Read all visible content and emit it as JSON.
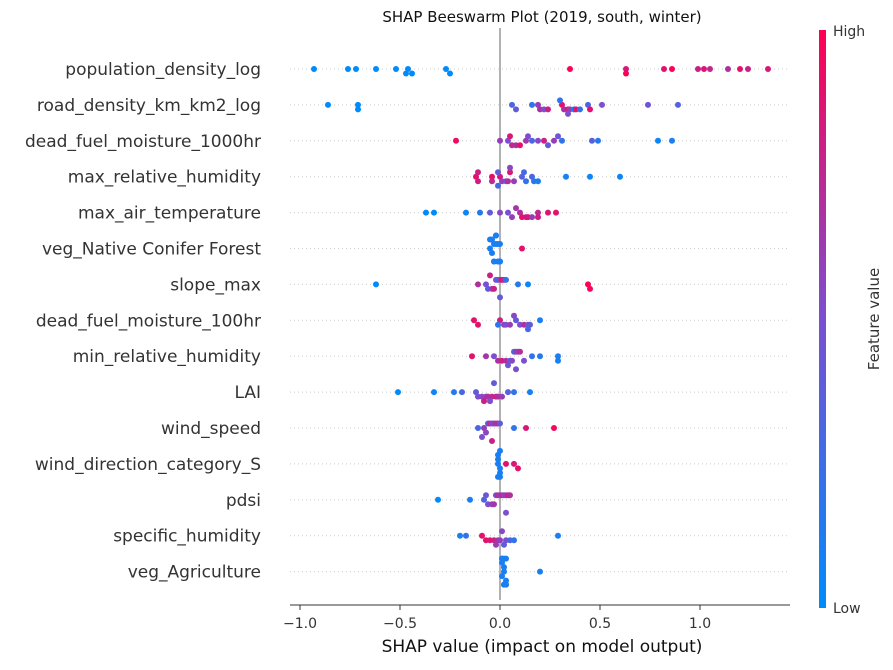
{
  "chart_data": {
    "type": "scatter",
    "title": "SHAP Beeswarm Plot (2019, south, winter)",
    "xlabel": "SHAP value (impact on model output)",
    "xlim": [
      -1.05,
      1.45
    ],
    "xticks": [
      -1.0,
      -0.5,
      0.0,
      0.5,
      1.0
    ],
    "xtick_labels": [
      "−1.0",
      "−0.5",
      "0.0",
      "0.5",
      "1.0"
    ],
    "colorbar": {
      "label": "Feature value",
      "high_label": "High",
      "low_label": "Low",
      "low_color": "#008bfb",
      "mid_color": "#7b4fd0",
      "high_color": "#ff0052"
    },
    "zero_line_color": "#999999",
    "features": [
      {
        "name": "population_density_log",
        "points": [
          [
            -0.93,
            0.0
          ],
          [
            -0.76,
            0.0
          ],
          [
            -0.72,
            0.0
          ],
          [
            -0.62,
            0.0
          ],
          [
            -0.52,
            0.0
          ],
          [
            -0.46,
            0.0
          ],
          [
            -0.44,
            0.0
          ],
          [
            -0.27,
            0.0
          ],
          [
            -0.25,
            0.0
          ],
          [
            0.35,
            1.0
          ],
          [
            0.63,
            0.85
          ],
          [
            0.82,
            0.9
          ],
          [
            0.86,
            1.0
          ],
          [
            0.99,
            0.8
          ],
          [
            1.02,
            0.85
          ],
          [
            1.05,
            0.75
          ],
          [
            1.14,
            0.7
          ],
          [
            1.2,
            0.9
          ],
          [
            1.24,
            0.8
          ],
          [
            1.34,
            0.85
          ],
          [
            -0.47,
            0.0
          ],
          [
            0.63,
            1.0
          ]
        ]
      },
      {
        "name": "road_density_km_km2_log",
        "points": [
          [
            -0.86,
            0.0
          ],
          [
            -0.71,
            0.0
          ],
          [
            -0.71,
            0.0
          ],
          [
            0.06,
            0.3
          ],
          [
            0.08,
            0.4
          ],
          [
            0.16,
            0.2
          ],
          [
            0.19,
            0.6
          ],
          [
            0.2,
            0.7
          ],
          [
            0.22,
            0.5
          ],
          [
            0.24,
            0.8
          ],
          [
            0.31,
            0.9
          ],
          [
            0.32,
            0.7
          ],
          [
            0.34,
            0.8
          ],
          [
            0.35,
            0.6
          ],
          [
            0.37,
            0.1
          ],
          [
            0.38,
            0.9
          ],
          [
            0.4,
            0.2
          ],
          [
            0.44,
            0.3
          ],
          [
            0.45,
            0.9
          ],
          [
            0.51,
            0.5
          ],
          [
            0.74,
            0.45
          ],
          [
            0.89,
            0.35
          ],
          [
            0.3,
            0.2
          ],
          [
            0.34,
            0.5
          ]
        ]
      },
      {
        "name": "dead_fuel_moisture_1000hr",
        "points": [
          [
            -0.22,
            0.95
          ],
          [
            0.0,
            0.6
          ],
          [
            0.04,
            0.5
          ],
          [
            0.06,
            0.75
          ],
          [
            0.08,
            0.7
          ],
          [
            0.1,
            0.9
          ],
          [
            0.13,
            0.65
          ],
          [
            0.16,
            0.3
          ],
          [
            0.19,
            0.55
          ],
          [
            0.22,
            0.8
          ],
          [
            0.24,
            0.4
          ],
          [
            0.27,
            0.6
          ],
          [
            0.31,
            0.2
          ],
          [
            0.46,
            0.35
          ],
          [
            0.49,
            0.15
          ],
          [
            0.79,
            0.05
          ],
          [
            0.86,
            0.1
          ],
          [
            0.05,
            0.85
          ],
          [
            0.14,
            0.5
          ],
          [
            0.29,
            0.45
          ]
        ]
      },
      {
        "name": "max_relative_humidity",
        "points": [
          [
            -0.12,
            0.9
          ],
          [
            -0.11,
            0.8
          ],
          [
            -0.04,
            0.9
          ],
          [
            0.0,
            0.85
          ],
          [
            0.01,
            0.6
          ],
          [
            -0.01,
            0.4
          ],
          [
            -0.01,
            0.3
          ],
          [
            0.03,
            0.5
          ],
          [
            0.04,
            0.7
          ],
          [
            0.05,
            0.85
          ],
          [
            0.07,
            0.6
          ],
          [
            0.11,
            0.35
          ],
          [
            0.13,
            0.2
          ],
          [
            0.16,
            0.3
          ],
          [
            0.17,
            0.15
          ],
          [
            0.19,
            0.1
          ],
          [
            0.33,
            0.1
          ],
          [
            0.45,
            0.05
          ],
          [
            0.6,
            0.05
          ],
          [
            -0.11,
            0.8
          ],
          [
            -0.04,
            0.75
          ],
          [
            0.05,
            0.55
          ],
          [
            0.12,
            0.3
          ]
        ]
      },
      {
        "name": "max_air_temperature",
        "points": [
          [
            -0.37,
            0.0
          ],
          [
            -0.33,
            0.0
          ],
          [
            -0.17,
            0.05
          ],
          [
            -0.1,
            0.15
          ],
          [
            -0.05,
            0.4
          ],
          [
            0.04,
            0.5
          ],
          [
            0.06,
            0.6
          ],
          [
            0.1,
            0.7
          ],
          [
            0.11,
            0.9
          ],
          [
            0.13,
            0.8
          ],
          [
            0.14,
            0.85
          ],
          [
            0.16,
            0.6
          ],
          [
            0.19,
            0.75
          ],
          [
            0.19,
            0.8
          ],
          [
            0.24,
            0.85
          ],
          [
            0.28,
            0.9
          ],
          [
            0.0,
            0.55
          ],
          [
            0.08,
            0.65
          ]
        ]
      },
      {
        "name": "veg_Native Conifer Forest ",
        "points": [
          [
            -0.05,
            0.1
          ],
          [
            -0.04,
            0.1
          ],
          [
            -0.03,
            0.1
          ],
          [
            -0.02,
            0.1
          ],
          [
            -0.01,
            0.1
          ],
          [
            0.0,
            0.1
          ],
          [
            -0.04,
            0.1
          ],
          [
            -0.02,
            0.1
          ],
          [
            -0.01,
            0.1
          ],
          [
            0.0,
            0.1
          ],
          [
            -0.05,
            0.1
          ],
          [
            -0.03,
            0.1
          ],
          [
            -0.02,
            0.1
          ],
          [
            0.0,
            0.1
          ],
          [
            -0.03,
            0.1
          ],
          [
            -0.01,
            0.1
          ],
          [
            0.11,
            0.9
          ]
        ]
      },
      {
        "name": "slope_max",
        "points": [
          [
            -0.62,
            0.0
          ],
          [
            -0.11,
            0.7
          ],
          [
            -0.07,
            0.5
          ],
          [
            -0.06,
            0.4
          ],
          [
            -0.04,
            0.6
          ],
          [
            -0.03,
            0.8
          ],
          [
            -0.02,
            0.5
          ],
          [
            -0.01,
            0.3
          ],
          [
            0.0,
            0.6
          ],
          [
            0.01,
            0.9
          ],
          [
            0.02,
            0.75
          ],
          [
            0.03,
            0.2
          ],
          [
            0.09,
            0.15
          ],
          [
            0.14,
            0.05
          ],
          [
            0.44,
            1.0
          ],
          [
            0.45,
            0.95
          ],
          [
            -0.05,
            0.8
          ],
          [
            0.0,
            0.4
          ]
        ]
      },
      {
        "name": "dead_fuel_moisture_100hr",
        "points": [
          [
            -0.13,
            0.9
          ],
          [
            -0.11,
            0.9
          ],
          [
            0.0,
            0.8
          ],
          [
            0.02,
            0.6
          ],
          [
            0.03,
            0.5
          ],
          [
            0.05,
            0.6
          ],
          [
            0.08,
            0.4
          ],
          [
            0.1,
            0.5
          ],
          [
            0.12,
            0.7
          ],
          [
            0.14,
            0.5
          ],
          [
            0.15,
            0.4
          ],
          [
            0.2,
            0.1
          ],
          [
            0.14,
            0.3
          ],
          [
            -0.01,
            0.2
          ],
          [
            0.07,
            0.55
          ]
        ]
      },
      {
        "name": "min_relative_humidity",
        "points": [
          [
            -0.14,
            0.9
          ],
          [
            -0.07,
            0.65
          ],
          [
            -0.03,
            0.5
          ],
          [
            -0.01,
            0.7
          ],
          [
            0.01,
            0.8
          ],
          [
            0.03,
            0.7
          ],
          [
            0.05,
            0.4
          ],
          [
            0.06,
            0.55
          ],
          [
            0.07,
            0.3
          ],
          [
            0.08,
            0.6
          ],
          [
            0.09,
            0.6
          ],
          [
            0.1,
            0.7
          ],
          [
            0.12,
            0.5
          ],
          [
            0.16,
            0.2
          ],
          [
            0.2,
            0.15
          ],
          [
            0.29,
            0.1
          ],
          [
            0.29,
            0.1
          ],
          [
            0.04,
            0.45
          ],
          [
            0.08,
            0.5
          ]
        ]
      },
      {
        "name": "LAI",
        "points": [
          [
            -0.51,
            0.0
          ],
          [
            -0.33,
            0.05
          ],
          [
            -0.23,
            0.15
          ],
          [
            -0.19,
            0.3
          ],
          [
            -0.12,
            0.4
          ],
          [
            -0.11,
            0.5
          ],
          [
            -0.09,
            0.55
          ],
          [
            -0.07,
            0.6
          ],
          [
            -0.06,
            0.7
          ],
          [
            -0.04,
            0.75
          ],
          [
            -0.02,
            0.8
          ],
          [
            -0.01,
            0.7
          ],
          [
            0.01,
            0.6
          ],
          [
            0.04,
            0.35
          ],
          [
            0.07,
            0.2
          ],
          [
            0.15,
            0.1
          ],
          [
            -0.05,
            0.5
          ],
          [
            -0.08,
            0.8
          ],
          [
            -0.03,
            0.4
          ]
        ]
      },
      {
        "name": "wind_speed",
        "points": [
          [
            -0.11,
            0.3
          ],
          [
            -0.08,
            0.6
          ],
          [
            -0.07,
            0.55
          ],
          [
            -0.06,
            0.4
          ],
          [
            -0.05,
            0.75
          ],
          [
            -0.04,
            0.5
          ],
          [
            -0.03,
            0.6
          ],
          [
            -0.02,
            0.65
          ],
          [
            -0.01,
            0.7
          ],
          [
            0.0,
            0.4
          ],
          [
            0.07,
            0.2
          ],
          [
            0.13,
            0.85
          ],
          [
            0.27,
            0.95
          ],
          [
            -0.09,
            0.5
          ],
          [
            -0.04,
            0.8
          ]
        ]
      },
      {
        "name": "wind_direction_category_S",
        "points": [
          [
            -0.01,
            0.1
          ],
          [
            0.0,
            0.1
          ],
          [
            -0.01,
            0.1
          ],
          [
            0.0,
            0.1
          ],
          [
            -0.01,
            0.1
          ],
          [
            0.0,
            0.1
          ],
          [
            0.03,
            0.9
          ],
          [
            0.07,
            0.85
          ],
          [
            0.09,
            0.9
          ],
          [
            0.0,
            0.1
          ],
          [
            -0.01,
            0.1
          ]
        ]
      },
      {
        "name": "pdsi",
        "points": [
          [
            -0.31,
            0.0
          ],
          [
            -0.15,
            0.1
          ],
          [
            -0.08,
            0.3
          ],
          [
            -0.06,
            0.5
          ],
          [
            -0.04,
            0.6
          ],
          [
            -0.03,
            0.65
          ],
          [
            -0.02,
            0.55
          ],
          [
            -0.01,
            0.7
          ],
          [
            0.0,
            0.6
          ],
          [
            0.01,
            0.75
          ],
          [
            0.02,
            0.55
          ],
          [
            0.03,
            0.6
          ],
          [
            0.04,
            0.8
          ],
          [
            0.05,
            0.7
          ],
          [
            -0.07,
            0.45
          ],
          [
            0.03,
            0.5
          ]
        ]
      },
      {
        "name": "specific_humidity",
        "points": [
          [
            -0.2,
            0.1
          ],
          [
            -0.17,
            0.2
          ],
          [
            -0.09,
            0.9
          ],
          [
            -0.07,
            0.9
          ],
          [
            -0.05,
            0.85
          ],
          [
            -0.03,
            0.8
          ],
          [
            -0.01,
            0.7
          ],
          [
            0.0,
            0.6
          ],
          [
            0.01,
            0.55
          ],
          [
            0.03,
            0.5
          ],
          [
            0.05,
            0.3
          ],
          [
            0.07,
            0.2
          ],
          [
            0.29,
            0.1
          ],
          [
            -0.02,
            0.6
          ],
          [
            0.02,
            0.4
          ]
        ]
      },
      {
        "name": "veg_Agriculture ",
        "points": [
          [
            0.02,
            0.1
          ],
          [
            0.01,
            0.1
          ],
          [
            0.02,
            0.1
          ],
          [
            0.03,
            0.1
          ],
          [
            0.01,
            0.1
          ],
          [
            0.02,
            0.1
          ],
          [
            0.03,
            0.1
          ],
          [
            0.02,
            0.1
          ],
          [
            0.01,
            0.1
          ],
          [
            0.03,
            0.1
          ],
          [
            0.02,
            0.1
          ],
          [
            0.2,
            0.1
          ],
          [
            0.03,
            0.1
          ],
          [
            0.01,
            0.1
          ]
        ]
      }
    ]
  }
}
